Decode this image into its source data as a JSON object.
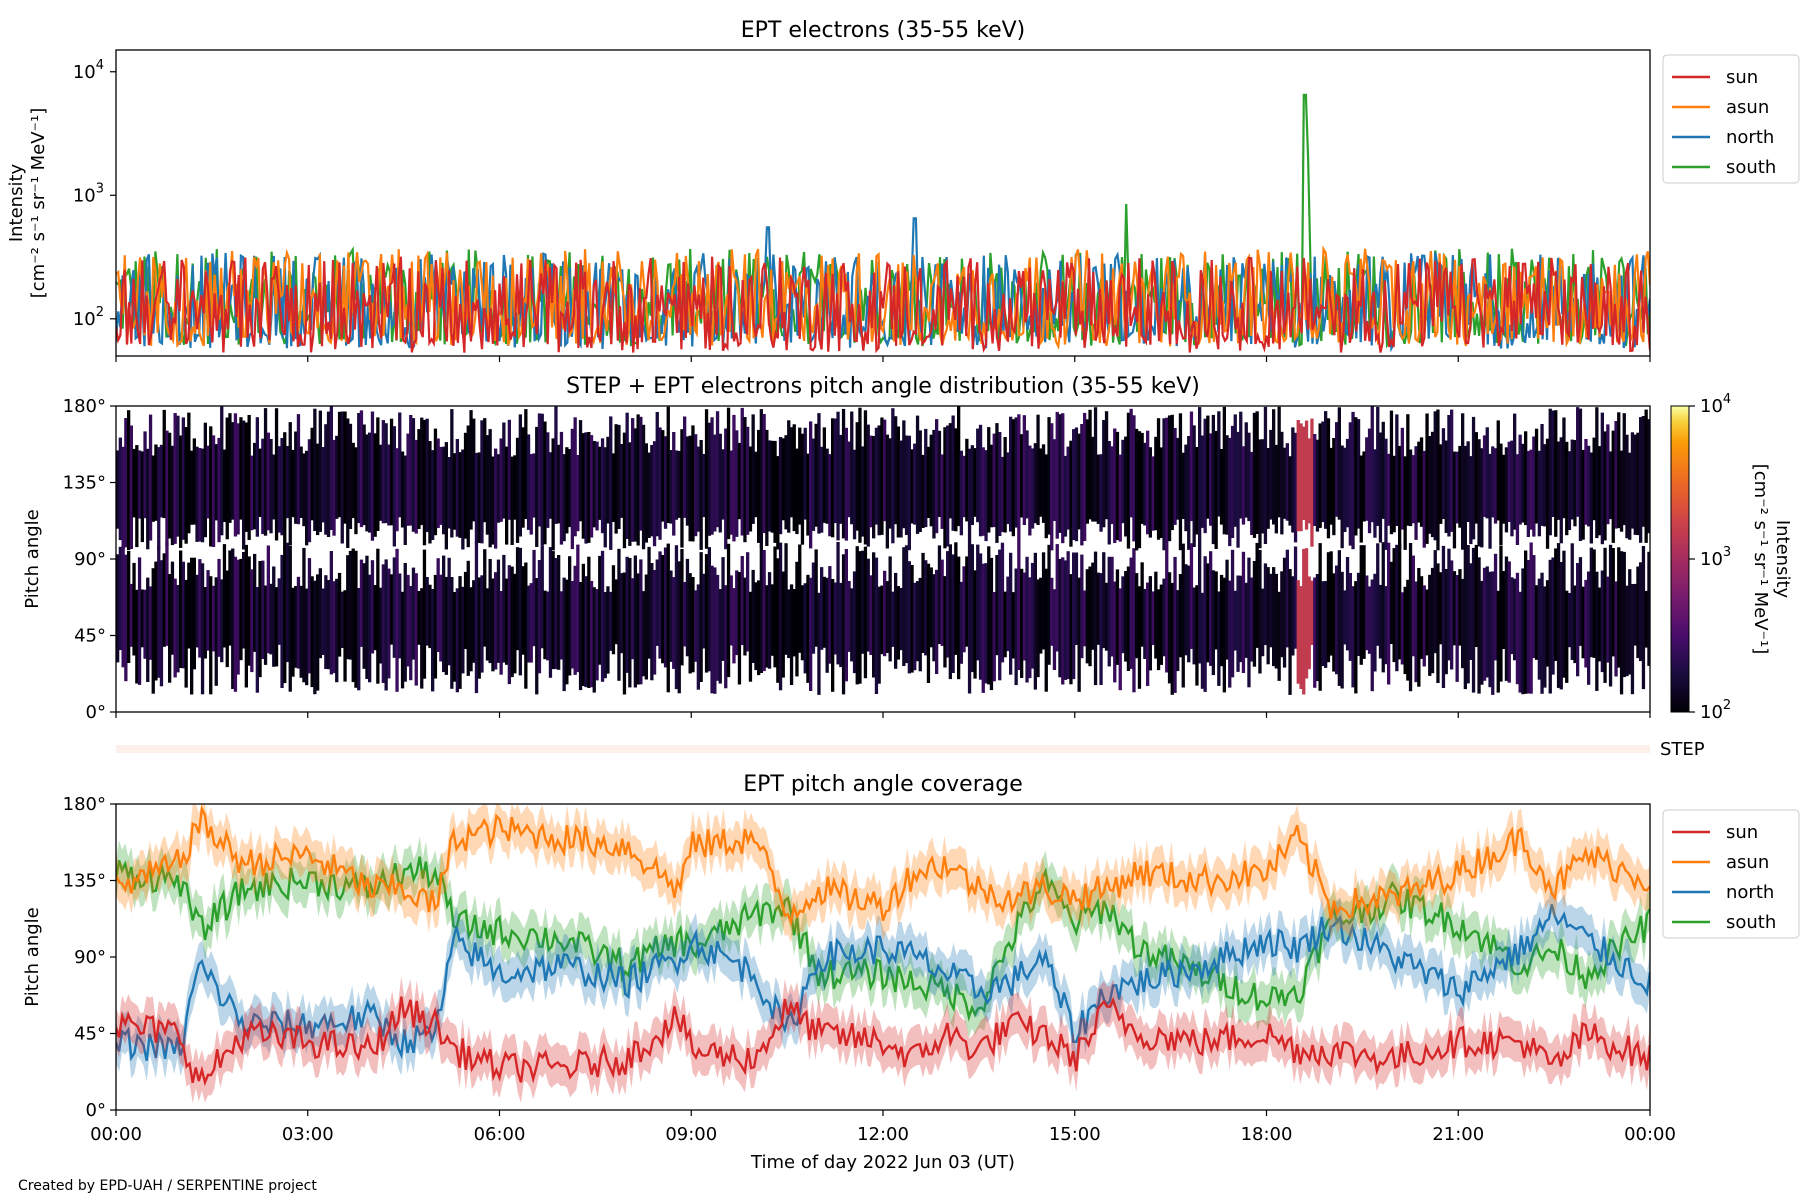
{
  "figure": {
    "xlabel": "Time of day 2022 Jun 03 (UT)",
    "xticks": [
      "00:00",
      "03:00",
      "06:00",
      "09:00",
      "12:00",
      "15:00",
      "18:00",
      "21:00",
      "00:00"
    ],
    "credit": "Created by EPD-UAH / SERPENTINE project"
  },
  "chart_data": [
    {
      "type": "line",
      "title": "EPT electrons (35-55 keV)",
      "ylabel_line1": "Intensity",
      "ylabel_line2": "[cm⁻² s⁻¹ sr⁻¹ MeV⁻¹]",
      "yscale": "log",
      "ylim": [
        50,
        15000
      ],
      "yticks": [
        {
          "base": "10",
          "exp": "2",
          "value": 100
        },
        {
          "base": "10",
          "exp": "3",
          "value": 1000
        },
        {
          "base": "10",
          "exp": "4",
          "value": 10000
        }
      ],
      "xlim_hours": [
        0,
        24
      ],
      "legend_placement": "upper right, outside",
      "noise_level": [
        60,
        500
      ],
      "series": [
        {
          "name": "sun",
          "color": "#d62728",
          "baseline": 130
        },
        {
          "name": "asun",
          "color": "#ff7f0e",
          "baseline": 150
        },
        {
          "name": "north",
          "color": "#1f77b4",
          "baseline": 140
        },
        {
          "name": "south",
          "color": "#2ca02c",
          "baseline": 150
        }
      ],
      "events": [
        {
          "series": "south",
          "x_hours": 18.6,
          "peak": 6500
        },
        {
          "series": "south",
          "x_hours": 18.65,
          "peak": 2000
        },
        {
          "series": "south",
          "x_hours": 15.8,
          "peak": 850
        },
        {
          "series": "north",
          "x_hours": 12.5,
          "peak": 650
        },
        {
          "series": "north",
          "x_hours": 10.2,
          "peak": 550
        }
      ]
    },
    {
      "type": "heatmap",
      "title": "STEP + EPT electrons pitch angle distribution (35-55 keV)",
      "ylabel": "Pitch angle",
      "ylim": [
        0,
        180
      ],
      "yticks": [
        "0°",
        "45°",
        "90°",
        "135°",
        "180°"
      ],
      "colormap": "inferno",
      "colorbar_label_line1": "Intensity",
      "colorbar_label_line2": "[cm⁻² s⁻¹ sr⁻¹ MeV⁻¹]",
      "colorbar_scale": "log",
      "colorbar_ticks": [
        {
          "base": "10",
          "exp": "2",
          "value": 100
        },
        {
          "base": "10",
          "exp": "3",
          "value": 1000
        },
        {
          "base": "10",
          "exp": "4",
          "value": 10000
        }
      ],
      "typical_intensity": 150,
      "event": {
        "x_hours": 18.6,
        "intensity": 1500
      }
    },
    {
      "type": "line",
      "title": "",
      "label": "STEP",
      "color": "#fdf0ea",
      "note": "narrow empty STEP strip"
    },
    {
      "type": "line",
      "title": "EPT pitch angle coverage",
      "ylabel": "Pitch angle",
      "ylim": [
        0,
        180
      ],
      "yticks": [
        "0°",
        "45°",
        "90°",
        "135°",
        "180°"
      ],
      "xlim_hours": [
        0,
        24
      ],
      "legend_placement": "upper right, outside",
      "shaded_band": "half-width ~ 12° around each series",
      "series": [
        {
          "name": "sun",
          "color": "#d62728",
          "x_hours": [
            0,
            1,
            1.3,
            2,
            3,
            4,
            4.5,
            5,
            5.3,
            6,
            7,
            8,
            8.8,
            9,
            10,
            10.5,
            11,
            12,
            12.5,
            13,
            13.5,
            14,
            14.5,
            15,
            15.5,
            16,
            17,
            18,
            18.5,
            19,
            20,
            21,
            22,
            22.5,
            23,
            24
          ],
          "values": [
            50,
            45,
            15,
            45,
            40,
            35,
            60,
            50,
            35,
            25,
            25,
            30,
            55,
            35,
            30,
            60,
            45,
            40,
            30,
            45,
            35,
            50,
            45,
            30,
            60,
            45,
            40,
            45,
            35,
            35,
            30,
            40,
            40,
            25,
            45,
            30
          ]
        },
        {
          "name": "asun",
          "color": "#ff7f0e",
          "x_hours": [
            0,
            1,
            1.3,
            2,
            3,
            4,
            4.5,
            5,
            5.3,
            6,
            7,
            8,
            8.8,
            9,
            10,
            10.5,
            11,
            12,
            12.5,
            13,
            13.5,
            14,
            14.5,
            15,
            15.5,
            16,
            17,
            18,
            18.5,
            19,
            20,
            21,
            22,
            22.5,
            23,
            24
          ],
          "values": [
            130,
            145,
            170,
            145,
            150,
            130,
            130,
            120,
            160,
            165,
            160,
            155,
            130,
            155,
            160,
            115,
            130,
            120,
            140,
            145,
            130,
            125,
            130,
            125,
            130,
            140,
            135,
            140,
            160,
            120,
            125,
            140,
            160,
            130,
            150,
            135
          ]
        },
        {
          "name": "north",
          "color": "#1f77b4",
          "x_hours": [
            0,
            1,
            1.3,
            2,
            3,
            4,
            4.5,
            5,
            5.3,
            6,
            7,
            8,
            8.8,
            9,
            10,
            10.5,
            11,
            12,
            12.5,
            13,
            13.5,
            14,
            14.5,
            15,
            15.5,
            16,
            17,
            18,
            18.5,
            19,
            20,
            21,
            22,
            22.5,
            23,
            24
          ],
          "values": [
            40,
            35,
            85,
            50,
            50,
            55,
            40,
            45,
            100,
            80,
            85,
            75,
            90,
            100,
            80,
            45,
            90,
            95,
            90,
            80,
            70,
            75,
            90,
            45,
            70,
            75,
            85,
            100,
            95,
            110,
            90,
            70,
            95,
            115,
            100,
            75
          ]
        },
        {
          "name": "south",
          "color": "#2ca02c",
          "x_hours": [
            0,
            1,
            1.3,
            2,
            3,
            4,
            4.5,
            5,
            5.3,
            6,
            7,
            8,
            8.8,
            9,
            10,
            10.5,
            11,
            12,
            12.5,
            13,
            13.5,
            14,
            14.5,
            15,
            15.5,
            16,
            17,
            18,
            18.5,
            19,
            20,
            21,
            22,
            22.5,
            23,
            24
          ],
          "values": [
            140,
            135,
            105,
            130,
            135,
            130,
            140,
            140,
            110,
            105,
            100,
            85,
            100,
            95,
            115,
            120,
            80,
            80,
            75,
            70,
            60,
            100,
            135,
            110,
            120,
            95,
            80,
            65,
            70,
            110,
            125,
            110,
            85,
            95,
            80,
            110
          ]
        }
      ]
    }
  ]
}
